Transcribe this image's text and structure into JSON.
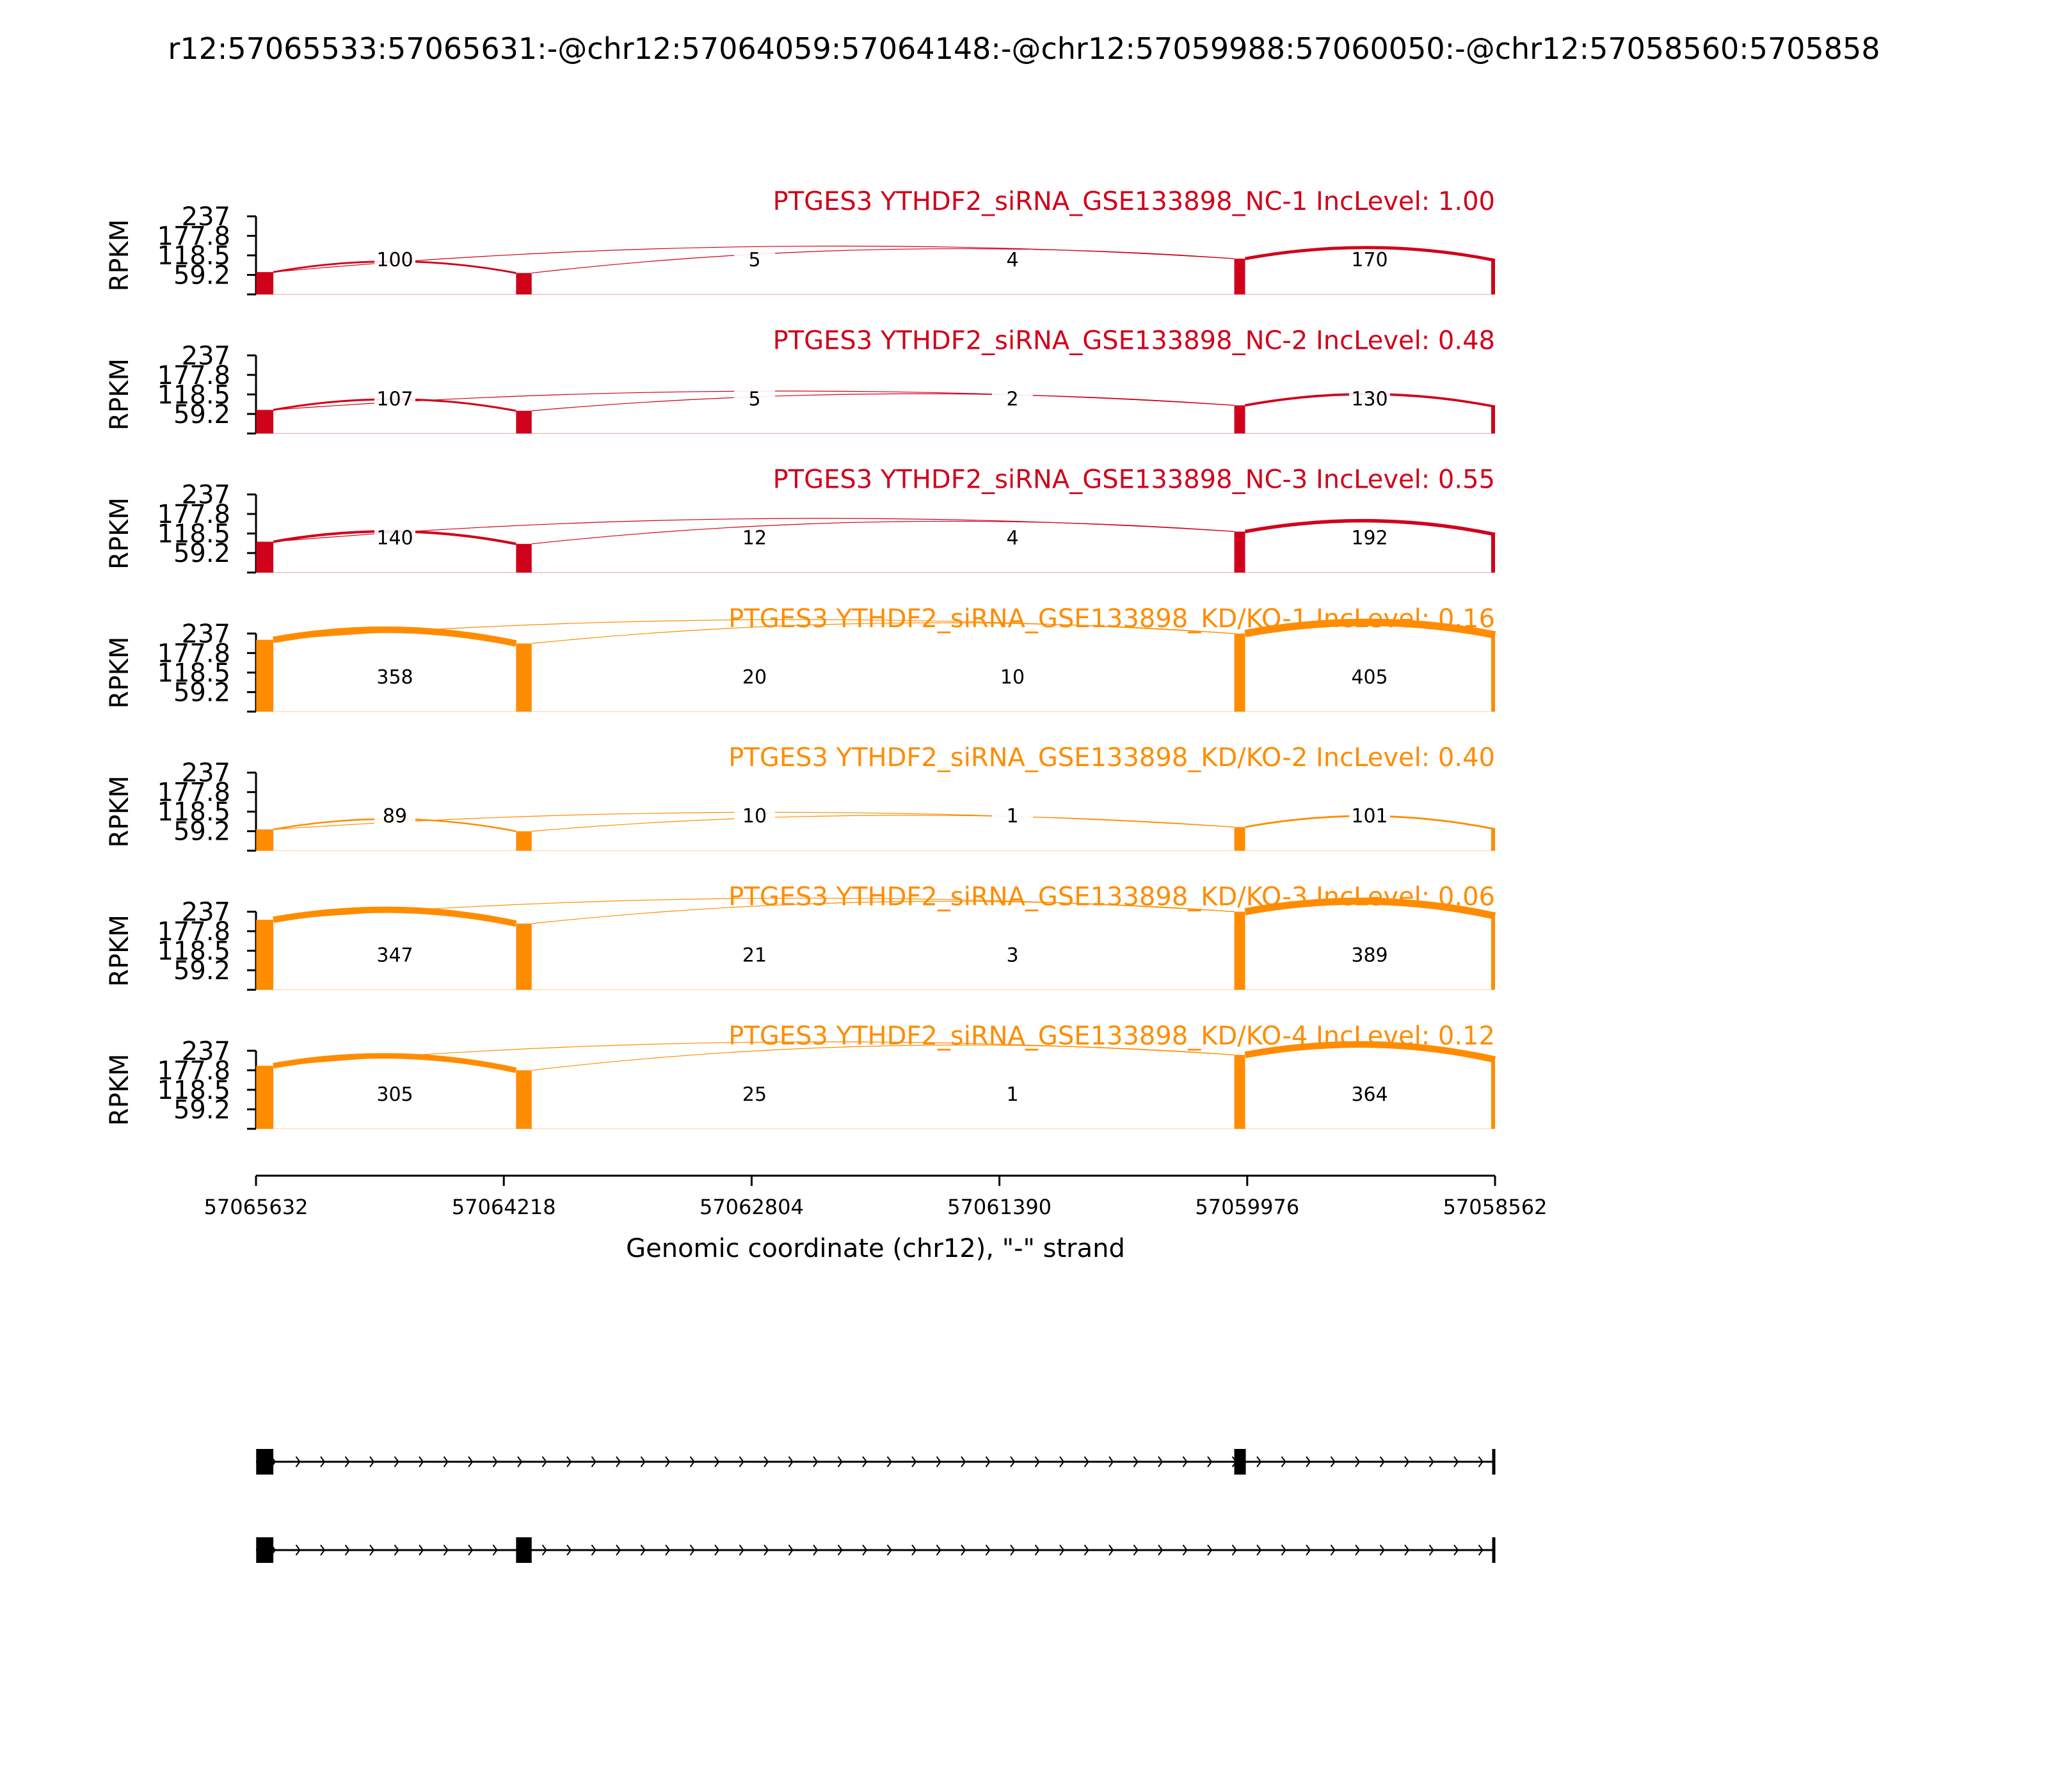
{
  "figure": {
    "title": "r12:57065533:57065631:-@chr12:57064059:57064148:-@chr12:57059988:57060050:-@chr12:57058560:5705858"
  },
  "colors": {
    "nc": "#d0021b",
    "kd": "#ff8c00",
    "axis": "#000000"
  },
  "chart_data": {
    "type": "area",
    "ylabel": "RPKM",
    "xlabel": "Genomic coordinate (chr12), \"-\" strand",
    "yticks": [
      "59.2",
      "118.5",
      "177.8",
      "237"
    ],
    "ylim": [
      0,
      237
    ],
    "xlim": [
      57065632,
      57058562
    ],
    "xticks": [
      "57065632",
      "57064218",
      "57062804",
      "57061390",
      "57059976",
      "57058562"
    ],
    "exons": [
      {
        "start": 57065631,
        "end": 57065533
      },
      {
        "start": 57064148,
        "end": 57064059
      },
      {
        "start": 57060050,
        "end": 57059988
      },
      {
        "start": 57058588,
        "end": 57058562
      }
    ],
    "series": [
      {
        "name": "PTGES3 YTHDF2_siRNA_GSE133898_NC-1 IncLevel: 1.00",
        "group": "nc",
        "junctions": {
          "j12": 100,
          "j13": 5,
          "j24": 4,
          "j34": 170
        }
      },
      {
        "name": "PTGES3 YTHDF2_siRNA_GSE133898_NC-2 IncLevel: 0.48",
        "group": "nc",
        "junctions": {
          "j12": 107,
          "j13": 5,
          "j24": 2,
          "j34": 130
        }
      },
      {
        "name": "PTGES3 YTHDF2_siRNA_GSE133898_NC-3 IncLevel: 0.55",
        "group": "nc",
        "junctions": {
          "j12": 140,
          "j13": 12,
          "j24": 4,
          "j34": 192
        }
      },
      {
        "name": "PTGES3 YTHDF2_siRNA_GSE133898_KD/KO-1 IncLevel: 0.16",
        "group": "kd",
        "junctions": {
          "j12": 358,
          "j13": 20,
          "j24": 10,
          "j34": 405
        }
      },
      {
        "name": "PTGES3 YTHDF2_siRNA_GSE133898_KD/KO-2 IncLevel: 0.40",
        "group": "kd",
        "junctions": {
          "j12": 89,
          "j13": 10,
          "j24": 1,
          "j34": 101
        }
      },
      {
        "name": "PTGES3 YTHDF2_siRNA_GSE133898_KD/KO-3 IncLevel: 0.06",
        "group": "kd",
        "junctions": {
          "j12": 347,
          "j13": 21,
          "j24": 3,
          "j34": 389
        }
      },
      {
        "name": "PTGES3 YTHDF2_siRNA_GSE133898_KD/KO-4 IncLevel: 0.12",
        "group": "kd",
        "junctions": {
          "j12": 305,
          "j13": 25,
          "j24": 1,
          "j34": 364
        }
      }
    ],
    "isoforms": [
      {
        "exons": [
          0,
          2,
          3
        ]
      },
      {
        "exons": [
          0,
          1,
          3
        ]
      }
    ]
  }
}
